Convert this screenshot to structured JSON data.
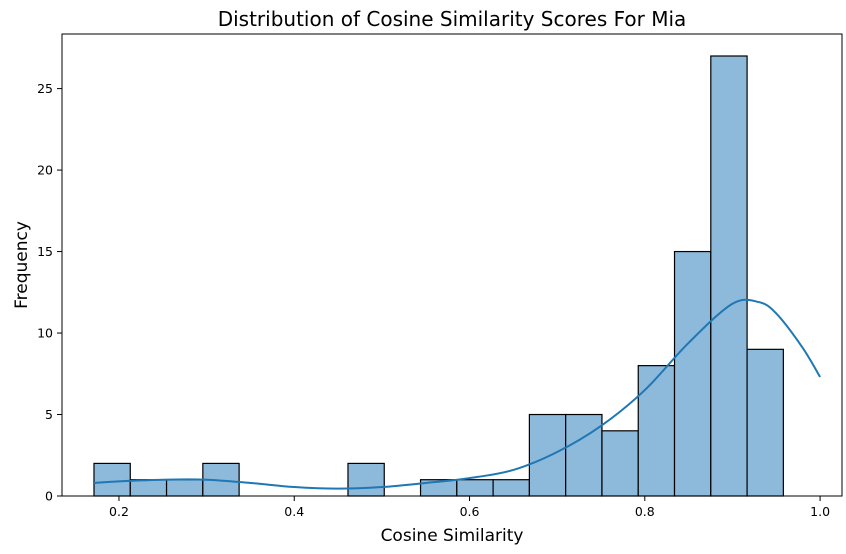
{
  "chart_data": {
    "type": "bar",
    "title": "Distribution of Cosine Similarity Scores For Mia",
    "xlabel": "Cosine Similarity",
    "ylabel": "Frequency",
    "xlim": [
      0.135,
      1.025
    ],
    "ylim": [
      0,
      28.35
    ],
    "xticks": [
      0.2,
      0.4,
      0.6,
      0.8,
      1.0
    ],
    "xtick_labels": [
      "0.2",
      "0.4",
      "0.6",
      "0.8",
      "1.0"
    ],
    "yticks": [
      0,
      5,
      10,
      15,
      20,
      25
    ],
    "ytick_labels": [
      "0",
      "5",
      "10",
      "15",
      "20",
      "25"
    ],
    "bin_start": 0.1715,
    "bin_width": 0.0414,
    "counts": [
      2,
      1,
      1,
      2,
      0,
      0,
      0,
      2,
      0,
      1,
      1,
      1,
      5,
      5,
      4,
      8,
      15,
      27,
      9
    ],
    "kde": {
      "x": [
        0.1715,
        0.2,
        0.25,
        0.3,
        0.35,
        0.4,
        0.45,
        0.5,
        0.55,
        0.6,
        0.65,
        0.7,
        0.75,
        0.8,
        0.85,
        0.9,
        0.93,
        0.95,
        0.98,
        1.0
      ],
      "y": [
        0.8,
        0.9,
        1.0,
        1.0,
        0.8,
        0.55,
        0.45,
        0.55,
        0.8,
        1.1,
        1.6,
        2.7,
        4.3,
        6.5,
        9.4,
        11.8,
        11.9,
        11.2,
        9.1,
        7.3
      ]
    },
    "bar_color": "#8db9db",
    "bar_edge_color": "#000000",
    "kde_color": "#1f77b4",
    "grid": false
  }
}
